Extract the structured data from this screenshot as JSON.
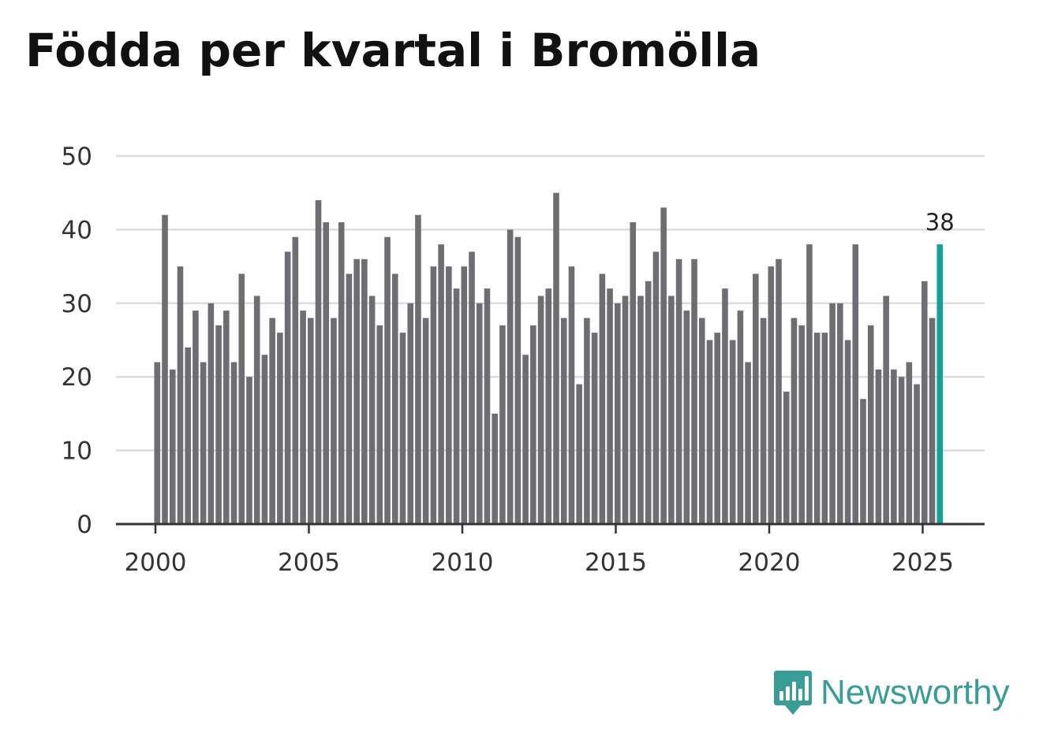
{
  "title": "Födda per kvartal i Bromölla",
  "brand": {
    "name": "Newsworthy",
    "icon": "bar-chart-speech-bubble-icon",
    "color": "#3a9d95"
  },
  "chart_data": {
    "type": "bar",
    "title": "Födda per kvartal i Bromölla",
    "xlabel": "",
    "ylabel": "",
    "ylim": [
      0,
      50
    ],
    "yticks": [
      0,
      10,
      20,
      30,
      40,
      50
    ],
    "xticks": [
      2000,
      2005,
      2010,
      2015,
      2020,
      2025
    ],
    "grid": true,
    "bar_color": "#6e6e72",
    "highlight_color": "#13a19a",
    "start_year": 2000,
    "periods_per_year": 4,
    "values": [
      22,
      42,
      21,
      35,
      24,
      29,
      22,
      30,
      27,
      29,
      22,
      34,
      20,
      31,
      23,
      28,
      26,
      37,
      39,
      29,
      28,
      44,
      41,
      28,
      41,
      34,
      36,
      36,
      31,
      27,
      39,
      34,
      26,
      30,
      42,
      28,
      35,
      38,
      35,
      32,
      35,
      37,
      30,
      32,
      15,
      27,
      40,
      39,
      23,
      27,
      31,
      32,
      45,
      28,
      35,
      19,
      28,
      26,
      34,
      32,
      30,
      31,
      41,
      31,
      33,
      37,
      43,
      31,
      36,
      29,
      36,
      28,
      25,
      26,
      32,
      25,
      29,
      22,
      34,
      28,
      35,
      36,
      18,
      28,
      27,
      38,
      26,
      26,
      30,
      30,
      25,
      38,
      17,
      27,
      21,
      31,
      21,
      20,
      22,
      19,
      33,
      28,
      38
    ],
    "highlight_index": 102,
    "highlight_label": "38"
  }
}
